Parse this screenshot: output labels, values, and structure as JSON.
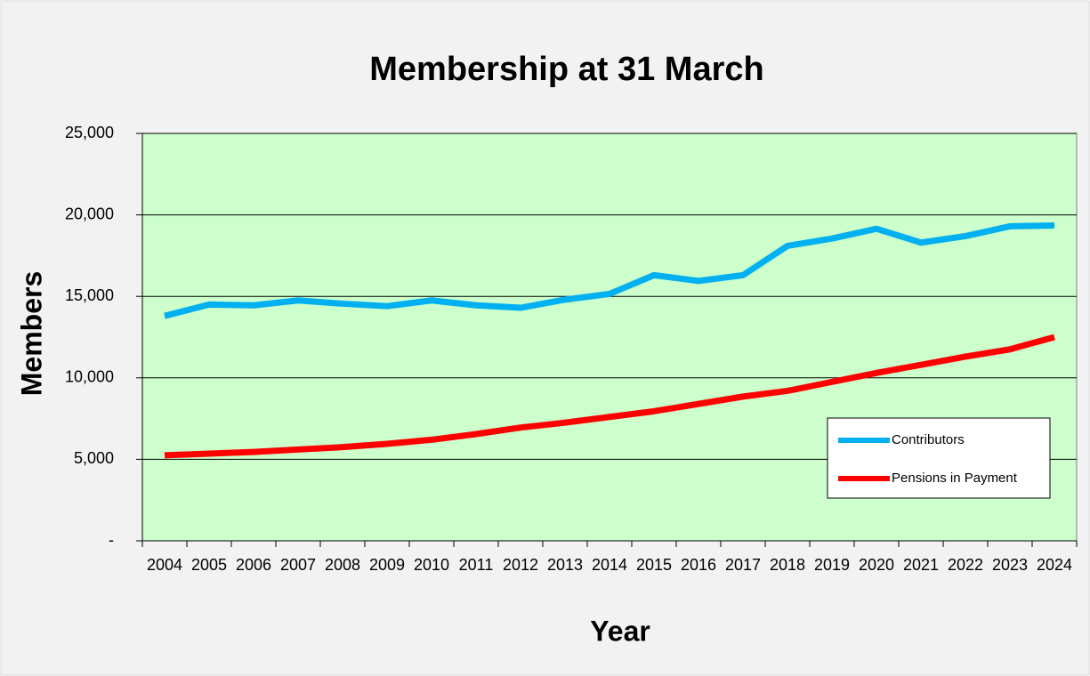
{
  "chart_data": {
    "type": "line",
    "title": "Membership at 31 March",
    "x_label": "Year",
    "y_label": "Members",
    "categories": [
      "2004",
      "2005",
      "2006",
      "2007",
      "2008",
      "2009",
      "2010",
      "2011",
      "2012",
      "2013",
      "2014",
      "2015",
      "2016",
      "2017",
      "2018",
      "2019",
      "2020",
      "2021",
      "2022",
      "2023",
      "2024"
    ],
    "series": [
      {
        "name": "Contributors",
        "color": "#00b0f0",
        "values": [
          13800,
          14500,
          14450,
          14750,
          14550,
          14400,
          14750,
          14450,
          14300,
          14800,
          15150,
          16300,
          15950,
          16300,
          18100,
          18550,
          19150,
          18300,
          18700,
          19300,
          19350
        ]
      },
      {
        "name": "Pensions in Payment",
        "color": "#ff0000",
        "values": [
          5250,
          5350,
          5450,
          5600,
          5750,
          5950,
          6200,
          6550,
          6950,
          7250,
          7600,
          7950,
          8400,
          8850,
          9200,
          9750,
          10300,
          10800,
          11300,
          11750,
          12500
        ]
      }
    ],
    "ylim": [
      0,
      25000
    ],
    "yticks": [
      {
        "value": 0,
        "label": "-"
      },
      {
        "value": 5000,
        "label": "5,000"
      },
      {
        "value": 10000,
        "label": "10,000"
      },
      {
        "value": 15000,
        "label": "15,000"
      },
      {
        "value": 20000,
        "label": "20,000"
      },
      {
        "value": 25000,
        "label": "25,000"
      }
    ],
    "grid": true,
    "legend": "lower right",
    "plot_background": "#ccffcc"
  }
}
